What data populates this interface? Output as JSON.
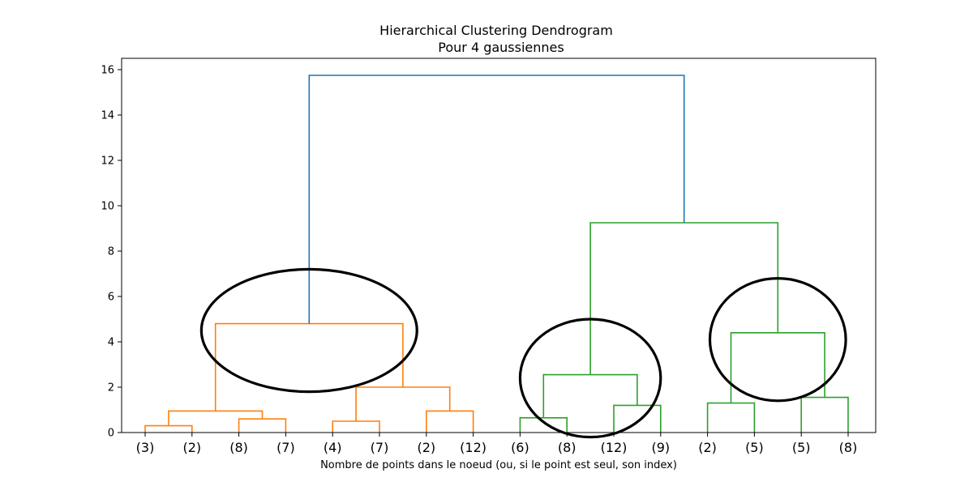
{
  "chart_data": {
    "type": "dendrogram",
    "title": "Hierarchical Clustering Dendrogram",
    "subtitle": "Pour 4 gaussiennes",
    "xlabel": "Nombre de points dans le noeud (ou, si le point est seul, son index)",
    "ylabel": "",
    "ylim": [
      0,
      16.5
    ],
    "yticks": [
      0,
      2,
      4,
      6,
      8,
      10,
      12,
      14,
      16
    ],
    "grid": false,
    "leaf_labels": [
      "(3)",
      "(2)",
      "(8)",
      "(7)",
      "(4)",
      "(7)",
      "(2)",
      "(12)",
      "(6)",
      "(8)",
      "(12)",
      "(9)",
      "(2)",
      "(5)",
      "(5)",
      "(8)"
    ],
    "colors": {
      "orange": "#ff7f0e",
      "green": "#2ca02c",
      "blue": "#1f77b4",
      "circle": "#000000"
    },
    "links": [
      {
        "id": "a",
        "left": 0,
        "right": 1,
        "height": 0.3,
        "color": "orange"
      },
      {
        "id": "b",
        "left": 2,
        "right": 3,
        "height": 0.6,
        "color": "orange"
      },
      {
        "id": "c",
        "left": "a",
        "right": "b",
        "height": 0.95,
        "color": "orange"
      },
      {
        "id": "d",
        "left": 4,
        "right": 5,
        "height": 0.5,
        "color": "orange"
      },
      {
        "id": "e",
        "left": 6,
        "right": 7,
        "height": 0.95,
        "color": "orange"
      },
      {
        "id": "f",
        "left": "d",
        "right": "e",
        "height": 2.0,
        "color": "orange"
      },
      {
        "id": "g",
        "left": "c",
        "right": "f",
        "height": 4.8,
        "color": "orange"
      },
      {
        "id": "h",
        "left": 8,
        "right": 9,
        "height": 0.65,
        "color": "green"
      },
      {
        "id": "i",
        "left": 10,
        "right": 11,
        "height": 1.2,
        "color": "green"
      },
      {
        "id": "j",
        "left": "h",
        "right": "i",
        "height": 2.55,
        "color": "green"
      },
      {
        "id": "k",
        "left": 12,
        "right": 13,
        "height": 1.3,
        "color": "green"
      },
      {
        "id": "l",
        "left": 14,
        "right": 15,
        "height": 1.55,
        "color": "green"
      },
      {
        "id": "m",
        "left": "k",
        "right": "l",
        "height": 4.4,
        "color": "green"
      },
      {
        "id": "n",
        "left": "j",
        "right": "m",
        "height": 9.25,
        "color": "green"
      },
      {
        "id": "o",
        "left": "g",
        "right": "n",
        "height": 15.75,
        "color": "blue"
      }
    ],
    "annotations": [
      {
        "type": "ellipse",
        "center_leaf": 3.5,
        "center_y": 4.5,
        "rx_leaves": 2.3,
        "ry_y": 2.7
      },
      {
        "type": "ellipse",
        "center_leaf": 9.5,
        "center_y": 2.4,
        "rx_leaves": 1.5,
        "ry_y": 2.6
      },
      {
        "type": "ellipse",
        "center_leaf": 13.5,
        "center_y": 4.1,
        "rx_leaves": 1.45,
        "ry_y": 2.7
      }
    ]
  }
}
